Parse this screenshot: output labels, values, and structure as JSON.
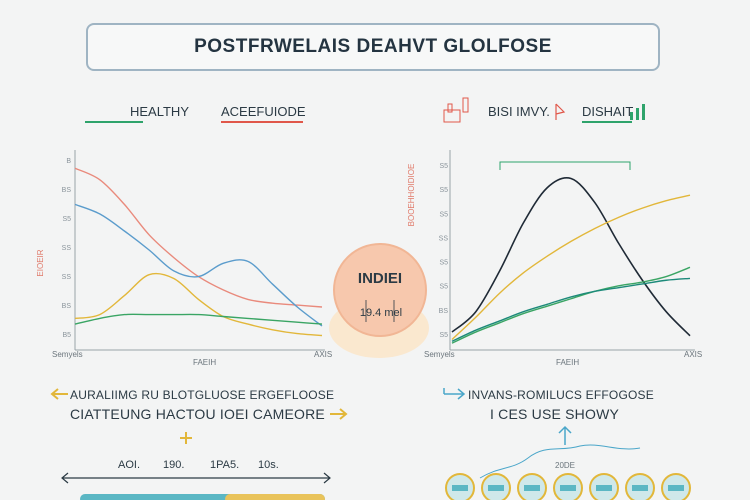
{
  "title": "POSTFRWELAIS DEAHVT GLOLFOSE",
  "left_legend": [
    {
      "label": "HEALTHY",
      "color": "#2ea36b"
    },
    {
      "label": "ACEEFUIODE",
      "color": "#e0574a"
    }
  ],
  "right_legend": [
    {
      "label": "BISI IMVY.",
      "color": "#e0574a"
    },
    {
      "label": "DISHAIT",
      "color": "#2ea36b"
    }
  ],
  "center": {
    "title": "INDIEI",
    "value": "19.4 mel"
  },
  "footer_left": {
    "line1": "AURALIIMG RU BLOTGLUOSE ERGEFLOOSE",
    "line2": "CIATTEUNG HACTOU IOEI CAMEORE",
    "ticks": [
      "AOI.",
      "190.",
      "1PA5.",
      "10s."
    ]
  },
  "footer_right": {
    "line1": "INVANS-ROMILUCS EFFOGOSE",
    "line2": "I CES USE SHOWY",
    "node_label": "20DE"
  },
  "chart_data": [
    {
      "type": "line",
      "ylabel": "EIOEIR",
      "xlabel": "FAEIH",
      "x_start_label": "Semyels",
      "x_end_label": "AXIS",
      "y_ticks": [
        "B",
        "BS",
        "S5",
        "SS",
        "SS",
        "BS",
        "B5"
      ],
      "x": [
        0,
        1,
        2,
        3,
        4,
        5,
        6,
        7,
        8,
        9,
        10
      ],
      "ylim": [
        0,
        10
      ],
      "series": [
        {
          "color": "#e98a7c",
          "values": [
            9.3,
            8.7,
            7.4,
            5.8,
            4.6,
            3.6,
            2.9,
            2.4,
            2.2,
            2.1,
            2.0
          ]
        },
        {
          "color": "#5b9ccc",
          "values": [
            7.4,
            6.9,
            6.0,
            5.0,
            3.9,
            3.6,
            4.3,
            4.4,
            3.2,
            2.0,
            1.0
          ]
        },
        {
          "color": "#e2b73a",
          "values": [
            1.4,
            1.6,
            2.6,
            3.7,
            3.5,
            2.4,
            1.5,
            1.1,
            0.8,
            0.6,
            0.5
          ]
        },
        {
          "color": "#3aa564",
          "values": [
            1.1,
            1.4,
            1.6,
            1.6,
            1.6,
            1.6,
            1.5,
            1.4,
            1.3,
            1.2,
            1.1
          ]
        }
      ]
    },
    {
      "type": "line",
      "ylabel": "BOOEHHOIDIOE",
      "xlabel": "FAEIH",
      "x_start_label": "Semyels",
      "x_end_label": "AXIS",
      "y_ticks": [
        "S5",
        "S5",
        "S5",
        "SS",
        "S5",
        "S5",
        "BS",
        "S5"
      ],
      "x": [
        0,
        1,
        2,
        3,
        4,
        5,
        6,
        7,
        8,
        9,
        10
      ],
      "ylim": [
        0,
        10
      ],
      "series": [
        {
          "color": "#1f2a36",
          "values": [
            0.7,
            1.8,
            4.0,
            6.6,
            8.5,
            9.0,
            7.7,
            5.5,
            3.5,
            1.8,
            0.5
          ]
        },
        {
          "color": "#e2b73a",
          "values": [
            0.3,
            1.5,
            2.8,
            3.9,
            4.8,
            5.6,
            6.3,
            6.9,
            7.4,
            7.8,
            8.1
          ]
        },
        {
          "color": "#3aa564",
          "values": [
            0.1,
            0.7,
            1.2,
            1.7,
            2.1,
            2.5,
            2.9,
            3.2,
            3.4,
            3.7,
            4.2
          ]
        },
        {
          "color": "#1c8a7a",
          "values": [
            0.2,
            0.8,
            1.3,
            1.8,
            2.2,
            2.6,
            2.9,
            3.1,
            3.3,
            3.5,
            3.6
          ]
        }
      ]
    }
  ]
}
